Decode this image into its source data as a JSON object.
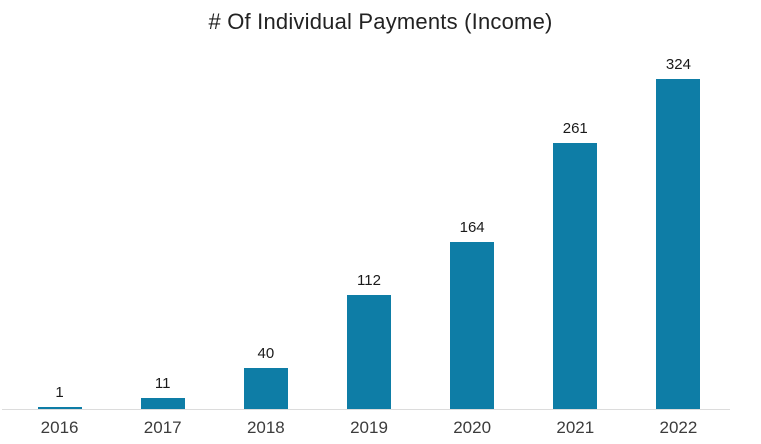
{
  "chart_data": {
    "type": "bar",
    "title": "# Of Individual Payments (Income)",
    "categories": [
      "2016",
      "2017",
      "2018",
      "2019",
      "2020",
      "2021",
      "2022"
    ],
    "values": [
      1,
      11,
      40,
      112,
      164,
      261,
      324
    ],
    "xlabel": "",
    "ylabel": "",
    "ylim": [
      0,
      340
    ],
    "grid": false,
    "legend_position": "none",
    "value_labels_shown": true,
    "bar_color": "#0e7da6",
    "title_color": "#222222",
    "value_label_color": "#1a1a1a",
    "category_label_color": "#3c3c3c",
    "axis_line_color": "#dcdcdc",
    "background_color": "#ffffff"
  }
}
